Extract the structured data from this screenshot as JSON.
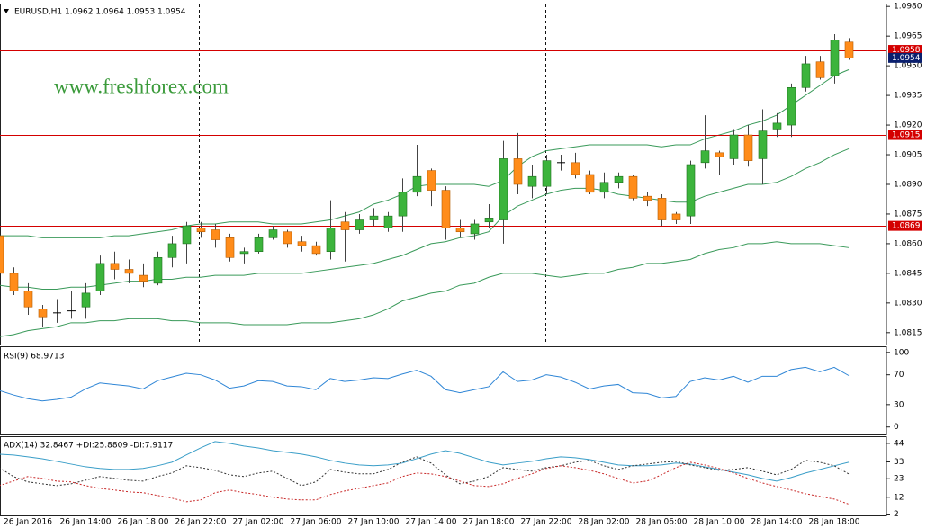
{
  "chart_data": [
    {
      "type": "candlestick",
      "title": "EURUSD,H1  1.0962 1.0964 1.0953 1.0954",
      "watermark": "www.freshforex.com",
      "categories": [
        null,
        null,
        "26 Jan 2016",
        null,
        null,
        null,
        "26 Jan 14:00",
        null,
        null,
        null,
        "26 Jan 18:00",
        null,
        null,
        null,
        "26 Jan 22:00",
        null,
        null,
        null,
        "27 Jan 02:00",
        null,
        null,
        null,
        "27 Jan 06:00",
        null,
        null,
        null,
        "27 Jan 10:00",
        null,
        null,
        null,
        "27 Jan 14:00",
        null,
        null,
        null,
        "27 Jan 18:00",
        null,
        null,
        null,
        "27 Jan 22:00",
        null,
        null,
        null,
        "28 Jan 02:00",
        null,
        null,
        null,
        "28 Jan 06:00",
        null,
        null,
        null,
        "28 Jan 10:00",
        null,
        null,
        null,
        "28 Jan 14:00",
        null,
        null,
        null,
        "28 Jan 18:00",
        null
      ],
      "open": [
        1.0864,
        1.0845,
        1.0836,
        1.0827,
        1.0825,
        1.0826,
        1.0828,
        1.0836,
        1.085,
        1.0847,
        1.0844,
        1.084,
        1.0853,
        1.086,
        1.0868,
        1.0867,
        1.0863,
        1.0855,
        1.0856,
        1.0863,
        1.0866,
        1.0861,
        1.0859,
        1.0856,
        1.0871,
        1.0867,
        1.0872,
        1.0868,
        1.0874,
        1.0886,
        1.0897,
        1.0887,
        1.0868,
        1.0865,
        1.0871,
        1.0872,
        1.0903,
        1.0889,
        1.0889,
        1.0901,
        1.0901,
        1.0895,
        1.0886,
        1.0891,
        1.0894,
        1.0884,
        1.0883,
        1.0875,
        1.0874,
        1.0901,
        1.0906,
        1.0903,
        1.0915,
        1.0903,
        1.0918,
        1.092,
        1.0939,
        1.0952,
        1.0945,
        1.0962
      ],
      "high": [
        1.0866,
        1.0848,
        1.084,
        1.0829,
        1.0832,
        1.0836,
        1.084,
        1.0854,
        1.0856,
        1.0852,
        1.085,
        1.0856,
        1.0864,
        1.0871,
        1.0871,
        1.087,
        1.0865,
        1.0858,
        1.0865,
        1.0869,
        1.0867,
        1.0864,
        1.0861,
        1.0882,
        1.0876,
        1.0875,
        1.0878,
        1.0876,
        1.0893,
        1.091,
        1.0898,
        1.0889,
        1.0872,
        1.0872,
        1.088,
        1.0912,
        1.0916,
        1.09,
        1.0905,
        1.0905,
        1.0906,
        1.0897,
        1.0896,
        1.0896,
        1.0895,
        1.0886,
        1.0885,
        1.0876,
        1.0902,
        1.0925,
        1.0907,
        1.0918,
        1.092,
        1.0928,
        1.0926,
        1.0941,
        1.0955,
        1.0955,
        1.0966,
        1.0964
      ],
      "low": [
        1.0842,
        1.0834,
        1.0824,
        1.0818,
        1.082,
        1.0822,
        1.0822,
        1.0834,
        1.0842,
        1.084,
        1.0838,
        1.0839,
        1.0848,
        1.085,
        1.0863,
        1.0858,
        1.0851,
        1.085,
        1.0855,
        1.0862,
        1.0858,
        1.0856,
        1.0854,
        1.0852,
        1.0851,
        1.0865,
        1.0869,
        1.0866,
        1.0866,
        1.0884,
        1.0879,
        1.0862,
        1.0863,
        1.0862,
        1.0868,
        1.086,
        1.0885,
        1.0883,
        1.0885,
        1.0897,
        1.0893,
        1.0885,
        1.0883,
        1.0888,
        1.0882,
        1.0879,
        1.0869,
        1.087,
        1.087,
        1.0898,
        1.0895,
        1.09,
        1.0899,
        1.089,
        1.0914,
        1.0914,
        1.0937,
        1.0943,
        1.0941,
        1.0953
      ],
      "close": [
        1.0845,
        1.0836,
        1.0828,
        1.0823,
        1.0825,
        1.0826,
        1.0835,
        1.085,
        1.0847,
        1.0845,
        1.0841,
        1.0853,
        1.086,
        1.0869,
        1.0866,
        1.0862,
        1.0853,
        1.0856,
        1.0863,
        1.0867,
        1.086,
        1.0859,
        1.0855,
        1.0868,
        1.0867,
        1.0872,
        1.0874,
        1.0874,
        1.0886,
        1.0894,
        1.0887,
        1.0868,
        1.0866,
        1.087,
        1.0873,
        1.0903,
        1.089,
        1.0894,
        1.0902,
        1.0901,
        1.0895,
        1.0886,
        1.0891,
        1.0894,
        1.0883,
        1.0882,
        1.0872,
        1.0872,
        1.09,
        1.0907,
        1.0904,
        1.0915,
        1.0902,
        1.0917,
        1.0921,
        1.0939,
        1.0951,
        1.0944,
        1.0963,
        1.0954
      ],
      "up_color": "#3cb43c",
      "down_color": "#ff8c1a",
      "wick_color": "#444444",
      "bollinger": {
        "color": "#3a9a5a",
        "upper": [
          1.0864,
          1.0864,
          1.0864,
          1.0863,
          1.0863,
          1.0863,
          1.0863,
          1.0863,
          1.0864,
          1.0864,
          1.0865,
          1.0866,
          1.0867,
          1.0869,
          1.087,
          1.087,
          1.0871,
          1.0871,
          1.0871,
          1.087,
          1.087,
          1.087,
          1.0871,
          1.0872,
          1.0874,
          1.0876,
          1.088,
          1.0882,
          1.0885,
          1.0889,
          1.089,
          1.089,
          1.089,
          1.089,
          1.0889,
          1.0892,
          1.0899,
          1.0904,
          1.0907,
          1.0908,
          1.0909,
          1.091,
          1.091,
          1.091,
          1.091,
          1.091,
          1.0909,
          1.091,
          1.091,
          1.0913,
          1.0915,
          1.0917,
          1.092,
          1.0922,
          1.0925,
          1.093,
          1.0935,
          1.094,
          1.0945,
          1.0948
        ],
        "middle": [
          1.0839,
          1.0838,
          1.0838,
          1.0837,
          1.0837,
          1.0838,
          1.0838,
          1.0839,
          1.084,
          1.0841,
          1.0841,
          1.0842,
          1.0842,
          1.0843,
          1.0843,
          1.0844,
          1.0844,
          1.0844,
          1.0845,
          1.0845,
          1.0845,
          1.0845,
          1.0846,
          1.0847,
          1.0848,
          1.0849,
          1.085,
          1.0852,
          1.0854,
          1.0857,
          1.086,
          1.0861,
          1.0863,
          1.0864,
          1.0866,
          1.0874,
          1.0879,
          1.0882,
          1.0885,
          1.0887,
          1.0888,
          1.0888,
          1.0887,
          1.0885,
          1.0884,
          1.0883,
          1.0882,
          1.0881,
          1.0881,
          1.0884,
          1.0886,
          1.0888,
          1.089,
          1.089,
          1.0891,
          1.0894,
          1.0898,
          1.0901,
          1.0905,
          1.0908
        ],
        "lower": [
          1.0813,
          1.0814,
          1.0816,
          1.0817,
          1.0818,
          1.082,
          1.082,
          1.0821,
          1.0821,
          1.0822,
          1.0822,
          1.0822,
          1.0821,
          1.0821,
          1.082,
          1.082,
          1.082,
          1.0819,
          1.0819,
          1.0819,
          1.0819,
          1.082,
          1.082,
          1.082,
          1.0821,
          1.0822,
          1.0824,
          1.0827,
          1.0831,
          1.0833,
          1.0835,
          1.0836,
          1.0839,
          1.084,
          1.0843,
          1.0845,
          1.0845,
          1.0845,
          1.0844,
          1.0843,
          1.0844,
          1.0845,
          1.0845,
          1.0847,
          1.0848,
          1.085,
          1.085,
          1.0851,
          1.0852,
          1.0855,
          1.0857,
          1.0858,
          1.086,
          1.086,
          1.0861,
          1.086,
          1.086,
          1.086,
          1.0859,
          1.0858
        ]
      },
      "levels": [
        {
          "value": 1.0958,
          "label": "1.0958"
        },
        {
          "value": 1.0915,
          "label": "1.0915"
        },
        {
          "value": 1.0869,
          "label": "1.0869"
        }
      ],
      "level_color": "#d40000",
      "last_price": {
        "value": 1.0954,
        "label": "1.0954"
      },
      "last_price_color": "#0a1f6e",
      "ylim": [
        1.0809,
        1.0981
      ],
      "yticks": [
        {
          "value": 1.098,
          "label": "1.0980"
        },
        {
          "value": 1.0965,
          "label": "1.0965"
        },
        {
          "value": 1.095,
          "label": "1.0950"
        },
        {
          "value": 1.0935,
          "label": "1.0935"
        },
        {
          "value": 1.092,
          "label": "1.0920"
        },
        {
          "value": 1.0905,
          "label": "1.0905"
        },
        {
          "value": 1.089,
          "label": "1.0890"
        },
        {
          "value": 1.0875,
          "label": "1.0875"
        },
        {
          "value": 1.086,
          "label": "1.0860"
        },
        {
          "value": 1.0845,
          "label": "1.0845"
        },
        {
          "value": 1.083,
          "label": "1.0830"
        },
        {
          "value": 1.0815,
          "label": "1.0815"
        }
      ]
    },
    {
      "type": "line",
      "title": "RSI(9) 68.9713",
      "series": [
        {
          "color": "#2f86d6",
          "style": "solid",
          "values": [
            49,
            43,
            38,
            35,
            37,
            40,
            51,
            59,
            57,
            55,
            51,
            62,
            67,
            72,
            70,
            63,
            52,
            55,
            62,
            61,
            55,
            54,
            50,
            65,
            61,
            63,
            66,
            65,
            71,
            76,
            68,
            50,
            46,
            50,
            54,
            74,
            61,
            63,
            70,
            67,
            60,
            51,
            55,
            57,
            46,
            45,
            39,
            41,
            61,
            66,
            63,
            68,
            60,
            68,
            68,
            77,
            80,
            74,
            80,
            69
          ]
        }
      ],
      "ylim": [
        -10,
        107
      ],
      "yticks": [
        100,
        70,
        30,
        0
      ]
    },
    {
      "type": "line",
      "title": "ADX(14) 32.8467 +DI:25.8809 -DI:7.9117",
      "series": [
        {
          "color": "#3a9ec8",
          "style": "solid",
          "values": [
            37.6,
            37.1,
            36,
            34.9,
            33.3,
            31.7,
            30.1,
            29.1,
            28.5,
            28.5,
            29.1,
            30.7,
            32.8,
            37.1,
            41.3,
            45.1,
            44,
            42.4,
            41.3,
            39.7,
            38.7,
            37.6,
            36,
            33.9,
            32.3,
            31.2,
            30.7,
            31.2,
            32.3,
            34.9,
            37.6,
            39.7,
            38.1,
            35.5,
            32.8,
            31.2,
            32.3,
            33.3,
            34.9,
            36,
            35.5,
            34.4,
            32.8,
            31.2,
            30.7,
            30.7,
            31.2,
            32.3,
            31.7,
            30.1,
            28.5,
            26.9,
            25.3,
            23.2,
            21.6,
            23.7,
            26.4,
            28.5,
            30.7,
            32.8
          ]
        },
        {
          "color": "#333333",
          "style": "dashed",
          "values": [
            29.6,
            24.3,
            21.1,
            20,
            18.9,
            20,
            22.1,
            24.3,
            23.2,
            22.1,
            21.6,
            24.3,
            26.4,
            30.7,
            29.6,
            28,
            25.3,
            24.3,
            26.4,
            27.5,
            23.2,
            18.9,
            21.1,
            28.5,
            26.9,
            25.9,
            25.9,
            28.5,
            32.8,
            36,
            32.3,
            25.3,
            20,
            21.6,
            24.3,
            29.6,
            28.5,
            27.5,
            29.6,
            30.7,
            32.8,
            33.9,
            30.7,
            28.5,
            30.7,
            31.7,
            32.8,
            33.3,
            31.2,
            29.6,
            28,
            28.5,
            29.6,
            27.5,
            25.3,
            28.5,
            33.9,
            32.8,
            30.7,
            25.9
          ]
        },
        {
          "color": "#c82828",
          "style": "dashed",
          "values": [
            18.9,
            21.6,
            24.3,
            23.2,
            21.6,
            21.1,
            18.9,
            17.3,
            16.3,
            15.2,
            14.7,
            13.1,
            11.5,
            9.3,
            10.4,
            14.7,
            16.3,
            14.7,
            13.6,
            12,
            10.9,
            10.4,
            10.4,
            13.6,
            15.7,
            17.3,
            18.9,
            20.5,
            24.3,
            26.4,
            25.9,
            24.3,
            21.6,
            18.9,
            18.4,
            20,
            23.2,
            25.9,
            29.1,
            30.7,
            29.6,
            28,
            25.9,
            23.2,
            20.5,
            21.6,
            25.3,
            29.6,
            32.8,
            31.2,
            29.1,
            26.4,
            23.2,
            20.5,
            18.4,
            16.3,
            14.1,
            12.5,
            10.9,
            7.9
          ]
        }
      ],
      "ylim": [
        1.2,
        47.7
      ],
      "yticks": [
        44,
        33,
        23,
        12,
        2
      ]
    }
  ]
}
